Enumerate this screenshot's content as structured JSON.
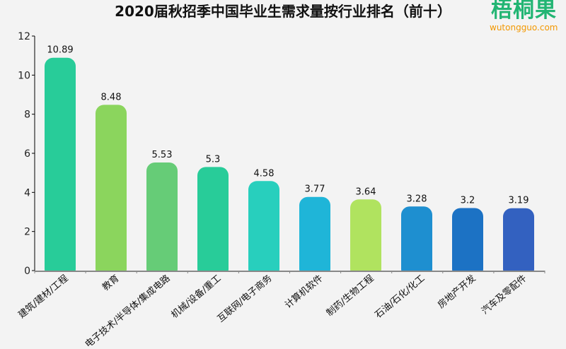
{
  "logo": {
    "cn": "梧桐果",
    "en": "wutongguo.com"
  },
  "chart_data": {
    "type": "bar",
    "title": "2020届秋招季中国毕业生需求量按行业排名（前十）",
    "categories": [
      "建筑/建材/工程",
      "教育",
      "电子技术/半导体/集成电路",
      "机械/设备/重工",
      "互联网/电子商务",
      "计算机软件",
      "制药/生物工程",
      "石油/石化/化工",
      "房地产开发",
      "汽车及零配件"
    ],
    "values": [
      10.89,
      8.48,
      5.53,
      5.3,
      4.58,
      3.77,
      3.64,
      3.28,
      3.2,
      3.19
    ],
    "value_labels": [
      "10.89",
      "8.48",
      "5.53",
      "5.3",
      "4.58",
      "3.77",
      "3.64",
      "3.28",
      "3.2",
      "3.19"
    ],
    "colors": [
      "#28cc99",
      "#8bd55d",
      "#66cc77",
      "#28cc99",
      "#28cfbd",
      "#1fb5d8",
      "#b0e35f",
      "#1e8fd0",
      "#1c72c4",
      "#3361c0"
    ],
    "ylim": [
      0,
      12
    ],
    "yticks": [
      0,
      2,
      4,
      6,
      8,
      10,
      12
    ],
    "grid": false,
    "xlabel": "",
    "ylabel": ""
  }
}
